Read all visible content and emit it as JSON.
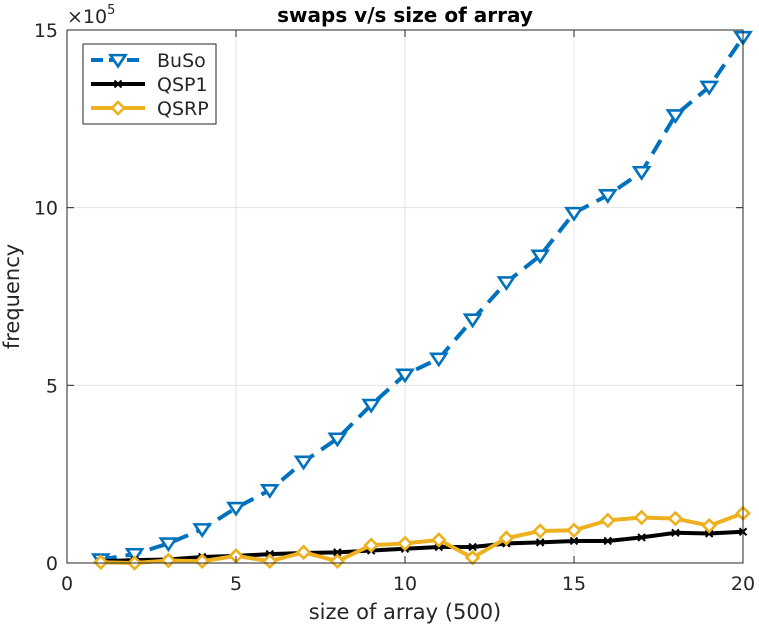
{
  "chart_data": {
    "type": "line",
    "title": "swaps v/s size of array",
    "xlabel": "size of array (500)",
    "ylabel": "frequency",
    "y_exponent_label": "×10",
    "y_exponent_power": "5",
    "xlim": [
      0,
      20
    ],
    "ylim": [
      0,
      15
    ],
    "xticks": [
      0,
      5,
      10,
      15,
      20
    ],
    "yticks": [
      0,
      5,
      10,
      15
    ],
    "xtick_labels": [
      "0",
      "5",
      "10",
      "15",
      "20"
    ],
    "ytick_labels": [
      "0",
      "5",
      "10",
      "15"
    ],
    "grid": true,
    "legend_position": "top-left",
    "x": [
      1,
      2,
      3,
      4,
      5,
      6,
      7,
      8,
      9,
      10,
      11,
      12,
      13,
      14,
      15,
      16,
      17,
      18,
      19,
      20
    ],
    "series": [
      {
        "name": "BuSo",
        "color": "#0072BD",
        "line_style": "dashed",
        "marker": "triangle-down",
        "values": [
          0.1,
          0.25,
          0.55,
          0.95,
          1.55,
          2.05,
          2.85,
          3.5,
          4.45,
          5.3,
          5.75,
          6.85,
          7.9,
          8.65,
          9.85,
          10.35,
          11.0,
          12.6,
          13.4,
          14.8
        ]
      },
      {
        "name": "QSP1",
        "color": "#000000",
        "line_style": "solid",
        "marker": "x",
        "values": [
          0.05,
          0.08,
          0.1,
          0.17,
          0.2,
          0.25,
          0.28,
          0.3,
          0.35,
          0.4,
          0.45,
          0.45,
          0.55,
          0.58,
          0.62,
          0.62,
          0.72,
          0.85,
          0.83,
          0.88
        ]
      },
      {
        "name": "QSRP",
        "color": "#EDB120",
        "line_style": "solid",
        "marker": "diamond",
        "values": [
          0.02,
          0.0,
          0.07,
          0.05,
          0.2,
          0.05,
          0.3,
          0.05,
          0.5,
          0.55,
          0.65,
          0.15,
          0.7,
          0.9,
          0.92,
          1.2,
          1.28,
          1.25,
          1.05,
          1.4
        ]
      }
    ]
  }
}
